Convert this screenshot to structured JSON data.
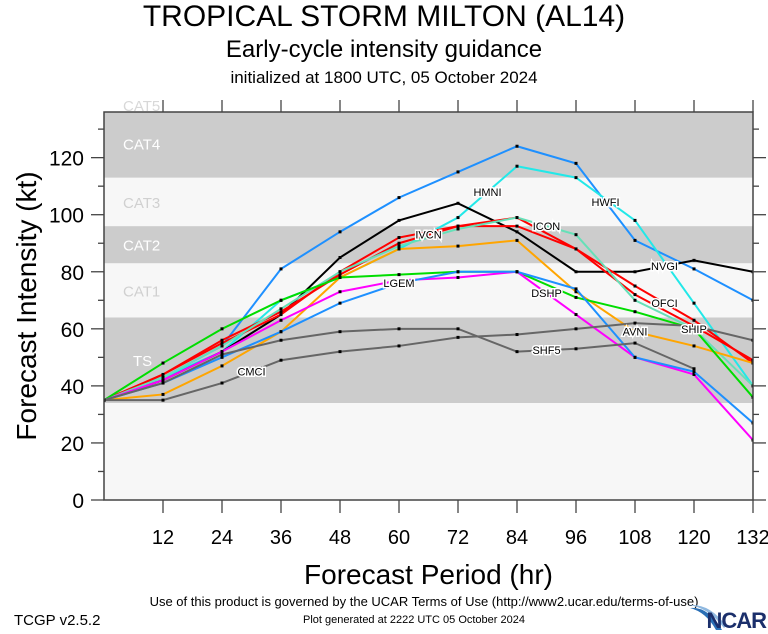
{
  "header": {
    "title": "TROPICAL STORM MILTON (AL14)",
    "subtitle": "Early-cycle intensity guidance",
    "initialized": "initialized at 1800 UTC, 05 October 2024"
  },
  "footer": {
    "terms": "Use of this product is governed by the UCAR Terms of Use (http://www2.ucar.edu/terms-of-use)",
    "generated": "Plot generated at 2222 UTC   05 October 2024",
    "version": "TCGP v2.5.2",
    "logo": "NCAR"
  },
  "chart_data": {
    "type": "line",
    "xlabel": "Forecast Period (hr)",
    "ylabel": "Forecast Intensity (kt)",
    "xlim": [
      0,
      132
    ],
    "ylim": [
      0,
      136
    ],
    "xticks": [
      12,
      24,
      36,
      48,
      60,
      72,
      84,
      96,
      108,
      120,
      132
    ],
    "yticks": [
      0,
      20,
      40,
      60,
      80,
      100,
      120
    ],
    "grid": false,
    "bands": [
      {
        "label": "TS",
        "from": 34,
        "to": 64,
        "color": "#cccccc",
        "text_color": "#ffffff"
      },
      {
        "label": "CAT1",
        "from": 64,
        "to": 83,
        "color": "#f7f7f7",
        "text_color": "#d0d0d0"
      },
      {
        "label": "CAT2",
        "from": 83,
        "to": 96,
        "color": "#cccccc",
        "text_color": "#ffffff"
      },
      {
        "label": "CAT3",
        "from": 96,
        "to": 113,
        "color": "#f7f7f7",
        "text_color": "#d0d0d0"
      },
      {
        "label": "CAT4",
        "from": 113,
        "to": 137,
        "color": "#cccccc",
        "text_color": "#ffffff"
      },
      {
        "label": "CAT5",
        "from": 137,
        "to": 160,
        "color": "#ffffff",
        "text_color": "#d8d8d8"
      }
    ],
    "x": [
      0,
      12,
      24,
      36,
      48,
      60,
      72,
      84,
      96,
      108,
      120,
      132
    ],
    "series": [
      {
        "name": "HWFI",
        "color": "#1e90ff",
        "values": [
          35,
          43,
          54,
          81,
          94,
          106,
          115,
          124,
          118,
          91,
          81,
          70
        ]
      },
      {
        "name": "HMNI",
        "color": "#22e8e8",
        "values": [
          35,
          43,
          52,
          70,
          78,
          88,
          99,
          117,
          113,
          98,
          69,
          40
        ]
      },
      {
        "name": "NVGI",
        "color": "#000000",
        "values": [
          35,
          42,
          52,
          65,
          85,
          98,
          104,
          94,
          80,
          80,
          84,
          80
        ]
      },
      {
        "name": "OFCI",
        "color": "#ff0000",
        "values": [
          35,
          44,
          55,
          65,
          80,
          92,
          96,
          96,
          88,
          75,
          63,
          48
        ]
      },
      {
        "name": "IVCN",
        "color": "#ff0000",
        "values": [
          35,
          44,
          56,
          66,
          79,
          90,
          96,
          99,
          88,
          72,
          61,
          49
        ]
      },
      {
        "name": "ICON",
        "color": "#66e0b8",
        "values": [
          35,
          43,
          54,
          67,
          80,
          89,
          95,
          99,
          93,
          70,
          60,
          40
        ]
      },
      {
        "name": "AVNI",
        "color": "#ffa500",
        "values": [
          35,
          37,
          47,
          59,
          78,
          88,
          89,
          91,
          73,
          59,
          54,
          48
        ]
      },
      {
        "name": "SHIP",
        "color": "#00dd00",
        "values": [
          35,
          48,
          60,
          70,
          78,
          79,
          80,
          80,
          71,
          66,
          60,
          36
        ]
      },
      {
        "name": "DSHP",
        "color": "#ff00ff",
        "values": [
          35,
          42,
          52,
          63,
          73,
          77,
          78,
          80,
          65,
          50,
          44,
          21
        ]
      },
      {
        "name": "LGEM",
        "color": "#1e90ff",
        "values": [
          35,
          41,
          50,
          59,
          69,
          76,
          80,
          80,
          74,
          50,
          45,
          27
        ]
      },
      {
        "name": "SHF5",
        "color": "#666666",
        "values": [
          35,
          41,
          51,
          56,
          59,
          60,
          60,
          52,
          53,
          55,
          46,
          null
        ]
      },
      {
        "name": "CMCI",
        "color": "#666666",
        "values": [
          35,
          35,
          41,
          49,
          52,
          54,
          57,
          58,
          60,
          62,
          61,
          56
        ]
      }
    ]
  }
}
